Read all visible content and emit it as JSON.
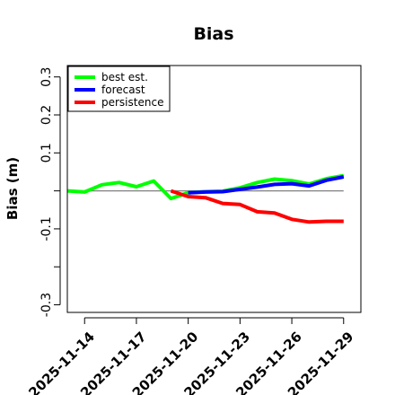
{
  "chart_data": {
    "type": "line",
    "title": "Bias",
    "ylabel": "Bias (m)",
    "xlabel": "",
    "ylim": [
      -0.32,
      0.33
    ],
    "yticks": [
      -0.3,
      -0.2,
      -0.1,
      0.0,
      0.1,
      0.2,
      0.3
    ],
    "ytick_labels": [
      "-0.3",
      "",
      "-0.1",
      "",
      "0.1",
      "0.2",
      "0.3"
    ],
    "x_start": "2025-11-13",
    "x_end": "2025-11-30",
    "x_ticks": [
      "2025-11-14",
      "2025-11-17",
      "2025-11-20",
      "2025-11-23",
      "2025-11-26",
      "2025-11-29"
    ],
    "highlight_tick": "2025-11-20",
    "highlight_color": "#228b22",
    "zero_line_color": "#808080",
    "legend_position": "top-left",
    "series": [
      {
        "name": "best est.",
        "color": "#00ff00",
        "x": [
          "2025-11-13",
          "2025-11-14",
          "2025-11-15",
          "2025-11-16",
          "2025-11-17",
          "2025-11-18",
          "2025-11-19",
          "2025-11-20",
          "2025-11-21",
          "2025-11-22",
          "2025-11-23",
          "2025-11-24",
          "2025-11-25",
          "2025-11-26",
          "2025-11-27",
          "2025-11-28",
          "2025-11-29"
        ],
        "values": [
          0.0,
          -0.003,
          0.016,
          0.022,
          0.011,
          0.026,
          -0.02,
          -0.005,
          -0.002,
          -0.001,
          0.008,
          0.022,
          0.031,
          0.027,
          0.018,
          0.032,
          0.04
        ]
      },
      {
        "name": "forecast",
        "color": "#0000ff",
        "x": [
          "2025-11-20",
          "2025-11-21",
          "2025-11-22",
          "2025-11-23",
          "2025-11-24",
          "2025-11-25",
          "2025-11-26",
          "2025-11-27",
          "2025-11-28",
          "2025-11-29"
        ],
        "values": [
          -0.005,
          -0.003,
          -0.002,
          0.004,
          0.01,
          0.017,
          0.019,
          0.013,
          0.028,
          0.037
        ]
      },
      {
        "name": "persistence",
        "color": "#ff0000",
        "x": [
          "2025-11-19",
          "2025-11-20",
          "2025-11-21",
          "2025-11-22",
          "2025-11-23",
          "2025-11-24",
          "2025-11-25",
          "2025-11-26",
          "2025-11-27",
          "2025-11-28",
          "2025-11-29"
        ],
        "values": [
          0.0,
          -0.015,
          -0.018,
          -0.033,
          -0.036,
          -0.055,
          -0.058,
          -0.075,
          -0.082,
          -0.08,
          -0.08
        ]
      }
    ]
  }
}
